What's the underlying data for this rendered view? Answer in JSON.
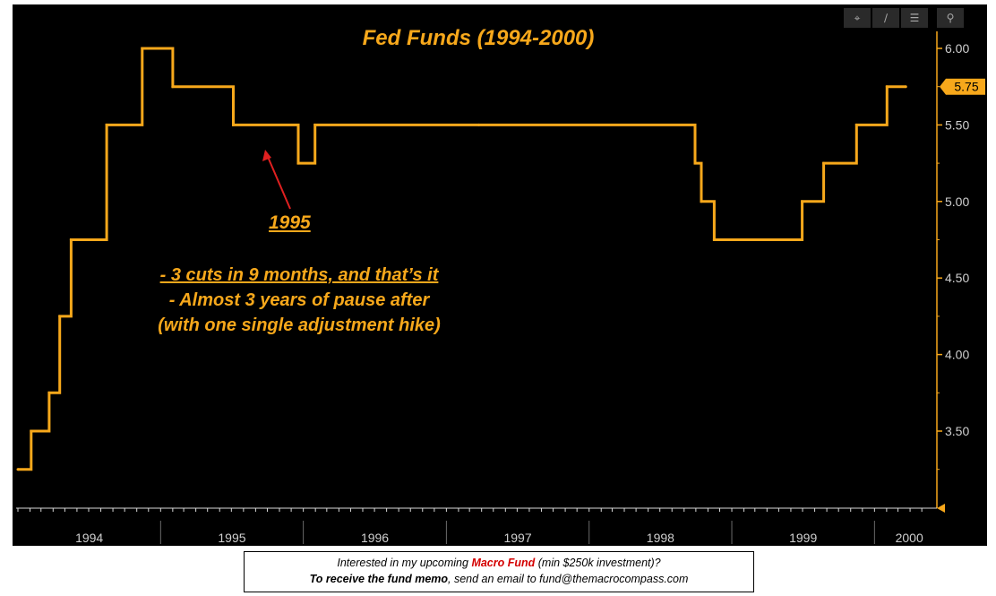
{
  "toolbar": {
    "icons": [
      "crosshair-icon",
      "draw-pencil-icon",
      "table-view-icon",
      "zoom-icon"
    ],
    "glyphs": [
      "⌖",
      "∕",
      "☰",
      "⚲"
    ]
  },
  "annotations": {
    "year": "1995",
    "note_lines": [
      "- 3 cuts in 9 months, and that’s it",
      "- Almost 3 years of pause after",
      "(with one single adjustment hike)"
    ]
  },
  "memo": {
    "line1_prefix": "Interested in my upcoming ",
    "line1_highlight": "Macro Fund",
    "line1_suffix": " (min $250k investment)?",
    "line2_bold": "To receive the fund memo",
    "line2_rest": ", send an email to fund@themacrocompass.com"
  },
  "colors": {
    "background": "#000000",
    "series": "#f7a81b",
    "axis": "#f7a81b",
    "arrow": "#e02020",
    "last_value_badge": "#f7a81b"
  },
  "chart_data": {
    "type": "line",
    "step": true,
    "title": "Fed Funds (1994-2000)",
    "xlabel": "",
    "ylabel": "",
    "x_tick_labels": [
      "1994",
      "1995",
      "1996",
      "1997",
      "1998",
      "1999",
      "2000"
    ],
    "y_tick_labels": [
      "3.50",
      "4.00",
      "4.50",
      "5.00",
      "5.50",
      "6.00"
    ],
    "ylim": [
      3.0,
      6.1
    ],
    "y_axis_side": "right",
    "grid": false,
    "last_value_label": "5.75",
    "series": [
      {
        "x": [
          "1994-01-01",
          "1994-02-04",
          "1994-03-22",
          "1994-04-18",
          "1994-05-17",
          "1994-08-16",
          "1994-11-15",
          "1995-02-01",
          "1995-07-06",
          "1995-12-19",
          "1996-01-31",
          "1997-03-25",
          "1998-09-29",
          "1998-10-15",
          "1998-11-17",
          "1999-06-30",
          "1999-08-24",
          "1999-11-16",
          "2000-02-02",
          "2000-03-21"
        ],
        "y": [
          3.25,
          3.5,
          3.75,
          4.25,
          4.75,
          5.5,
          6.0,
          5.75,
          5.5,
          5.25,
          5.5,
          5.5,
          5.25,
          5.0,
          4.75,
          5.0,
          5.25,
          5.5,
          5.75,
          5.75
        ]
      }
    ]
  }
}
